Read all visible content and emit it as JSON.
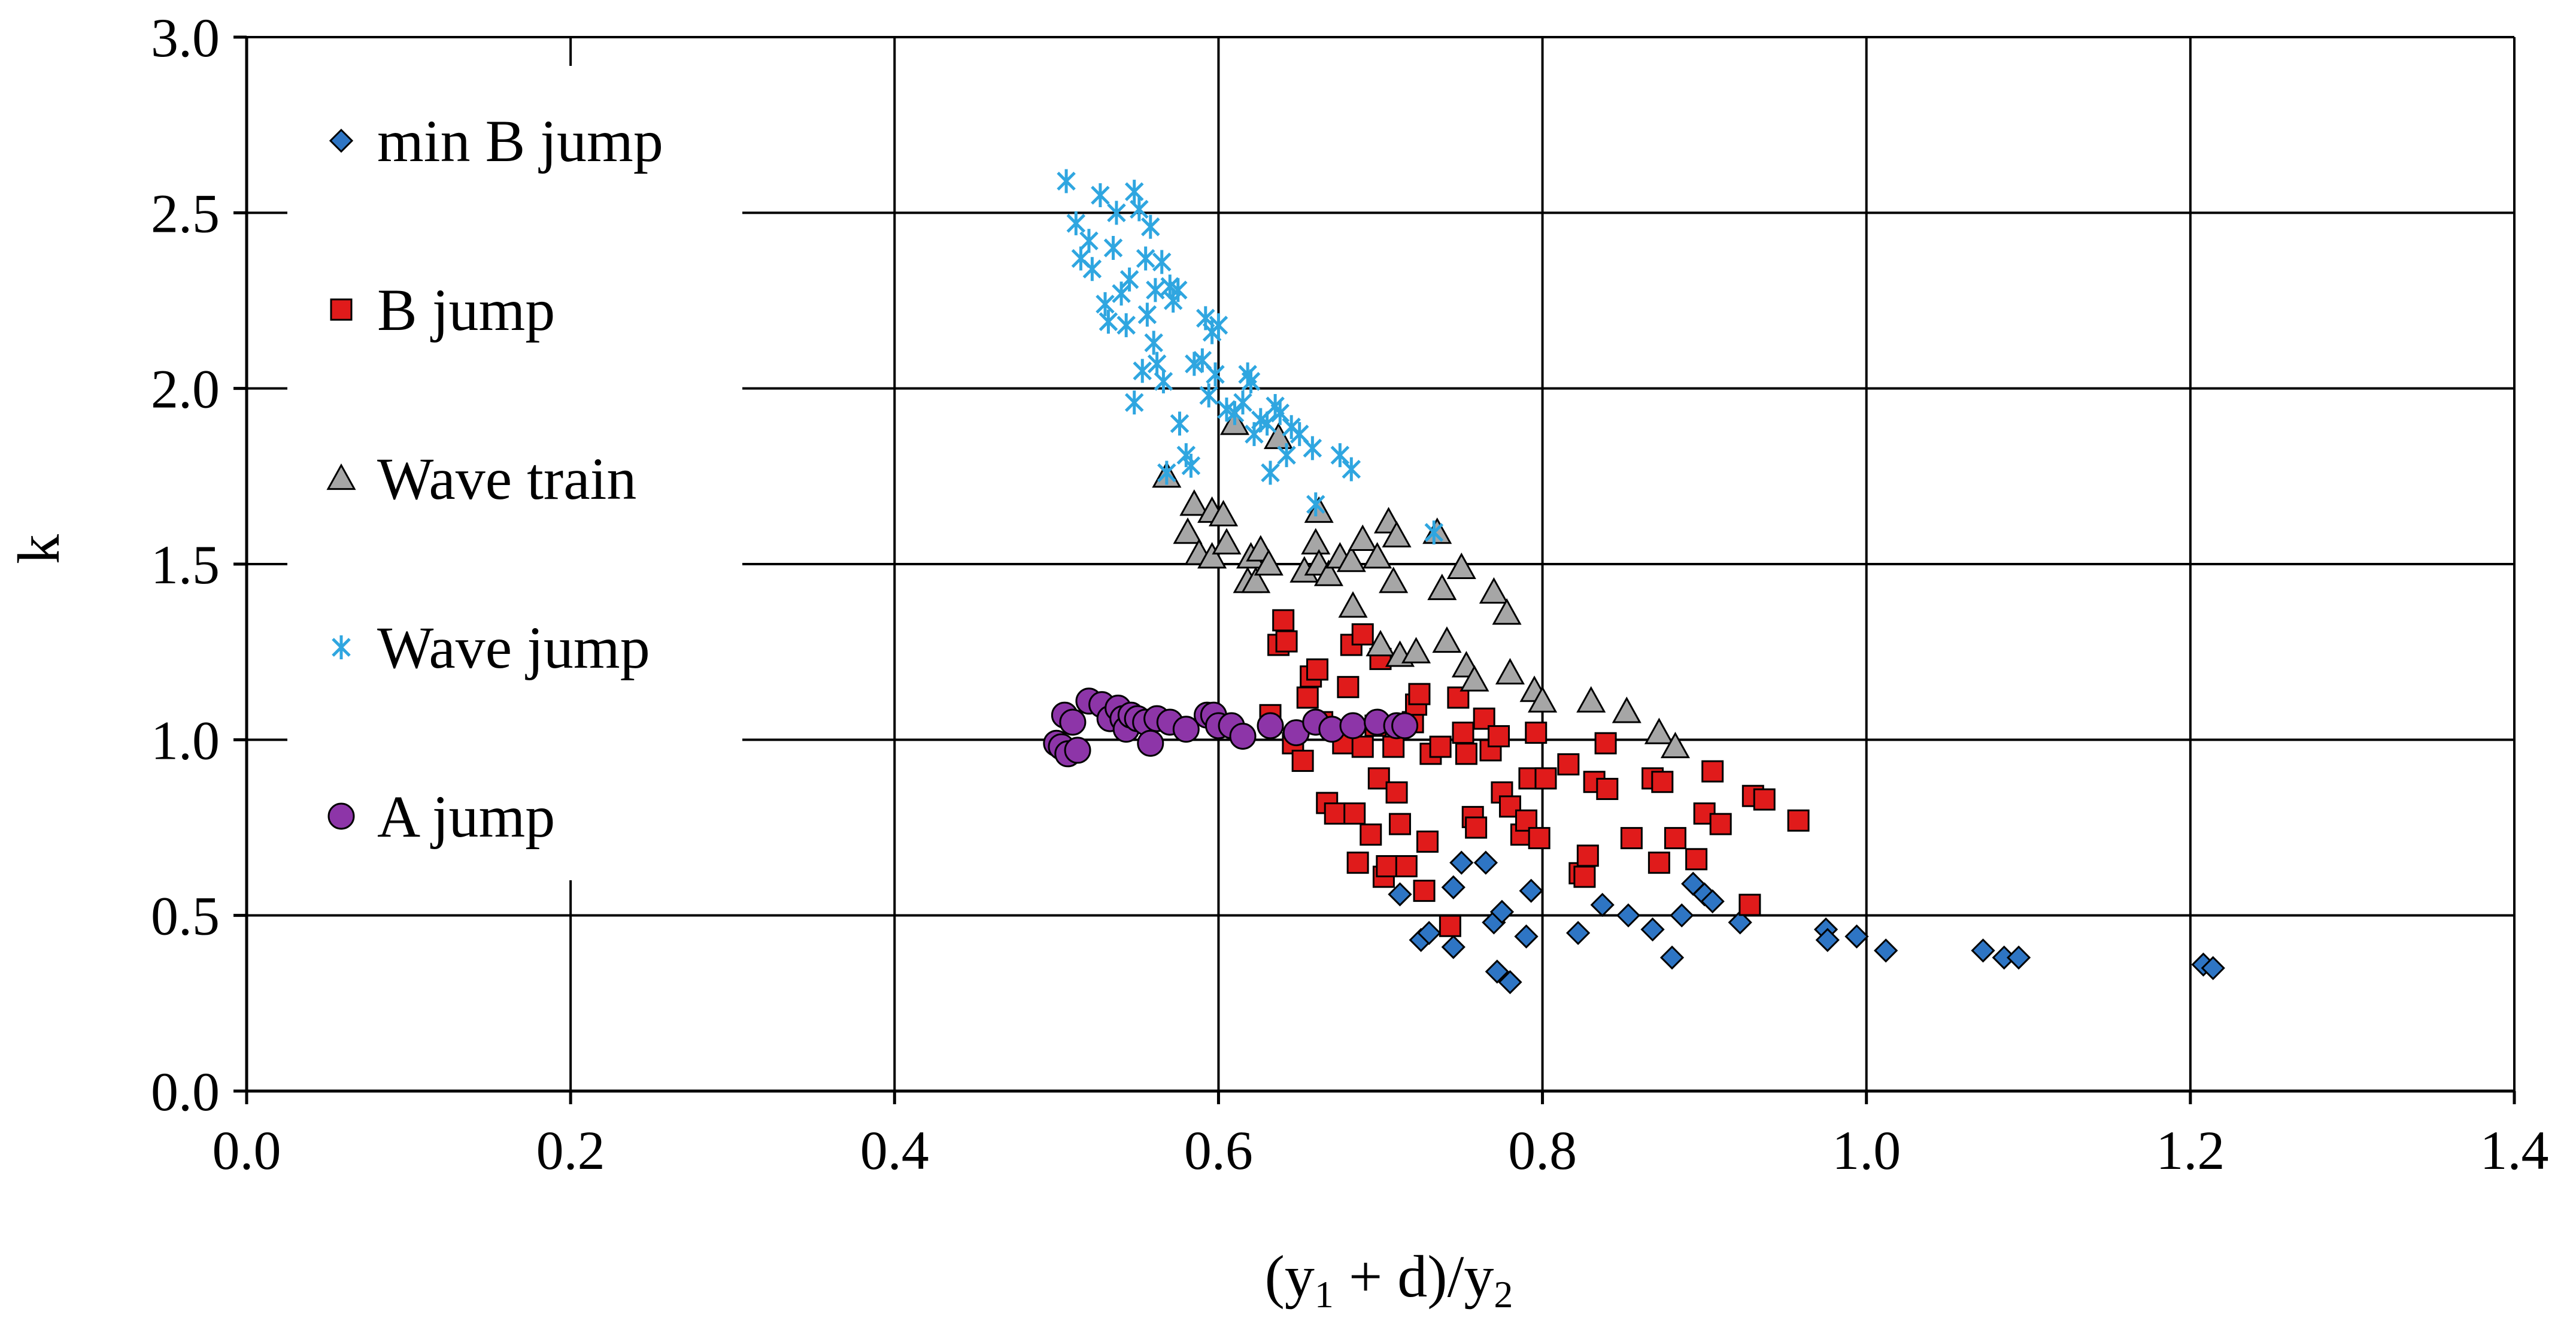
{
  "chart_data": {
    "type": "scatter",
    "title": "",
    "xlabel": "(y1 + d)/y2",
    "xlabel_parts": {
      "open": "(y",
      "sub1": "1",
      "mid": " + d)/y",
      "sub2": "2"
    },
    "ylabel": "k",
    "xlim": [
      0.0,
      1.4
    ],
    "ylim": [
      0.0,
      3.0
    ],
    "xticks": [
      "0.0",
      "0.2",
      "0.4",
      "0.6",
      "0.8",
      "1.0",
      "1.2",
      "1.4"
    ],
    "yticks": [
      "0.0",
      "0.5",
      "1.0",
      "1.5",
      "2.0",
      "2.5",
      "3.0"
    ],
    "grid": true,
    "legend_position": "left inside",
    "series": [
      {
        "name": "min B jump",
        "marker": "diamond",
        "color": "#2E75C4",
        "points": [
          [
            0.712,
            0.56
          ],
          [
            0.725,
            0.43
          ],
          [
            0.73,
            0.45
          ],
          [
            0.745,
            0.41
          ],
          [
            0.745,
            0.58
          ],
          [
            0.75,
            0.65
          ],
          [
            0.765,
            0.65
          ],
          [
            0.77,
            0.48
          ],
          [
            0.775,
            0.51
          ],
          [
            0.772,
            0.34
          ],
          [
            0.78,
            0.31
          ],
          [
            0.79,
            0.44
          ],
          [
            0.793,
            0.57
          ],
          [
            0.822,
            0.45
          ],
          [
            0.837,
            0.53
          ],
          [
            0.853,
            0.5
          ],
          [
            0.868,
            0.46
          ],
          [
            0.88,
            0.38
          ],
          [
            0.886,
            0.5
          ],
          [
            0.893,
            0.59
          ],
          [
            0.9,
            0.56
          ],
          [
            0.905,
            0.54
          ],
          [
            0.922,
            0.48
          ],
          [
            0.975,
            0.46
          ],
          [
            0.976,
            0.43
          ],
          [
            0.994,
            0.44
          ],
          [
            1.012,
            0.4
          ],
          [
            1.072,
            0.4
          ],
          [
            1.085,
            0.38
          ],
          [
            1.094,
            0.38
          ],
          [
            1.208,
            0.36
          ],
          [
            1.214,
            0.35
          ]
        ]
      },
      {
        "name": "B jump",
        "marker": "square",
        "color": "#E01B1B",
        "points": [
          [
            0.632,
            1.07
          ],
          [
            0.637,
            1.27
          ],
          [
            0.64,
            1.34
          ],
          [
            0.642,
            1.28
          ],
          [
            0.646,
            0.99
          ],
          [
            0.652,
            0.94
          ],
          [
            0.655,
            1.12
          ],
          [
            0.657,
            1.18
          ],
          [
            0.661,
            1.2
          ],
          [
            0.664,
            1.05
          ],
          [
            0.667,
            0.82
          ],
          [
            0.672,
            0.79
          ],
          [
            0.677,
            0.99
          ],
          [
            0.68,
            1.15
          ],
          [
            0.682,
            1.27
          ],
          [
            0.684,
            0.79
          ],
          [
            0.686,
            0.65
          ],
          [
            0.689,
            0.98
          ],
          [
            0.689,
            1.3
          ],
          [
            0.694,
            0.73
          ],
          [
            0.697,
            1.04
          ],
          [
            0.699,
            0.89
          ],
          [
            0.7,
            1.23
          ],
          [
            0.702,
            0.61
          ],
          [
            0.704,
            0.64
          ],
          [
            0.708,
            0.98
          ],
          [
            0.71,
            0.85
          ],
          [
            0.712,
            0.76
          ],
          [
            0.716,
            0.64
          ],
          [
            0.72,
            1.05
          ],
          [
            0.722,
            1.1
          ],
          [
            0.724,
            1.13
          ],
          [
            0.727,
            0.57
          ],
          [
            0.729,
            0.71
          ],
          [
            0.731,
            0.96
          ],
          [
            0.737,
            0.98
          ],
          [
            0.743,
            0.47
          ],
          [
            0.748,
            1.12
          ],
          [
            0.751,
            1.02
          ],
          [
            0.753,
            0.96
          ],
          [
            0.757,
            0.78
          ],
          [
            0.759,
            0.75
          ],
          [
            0.764,
            1.06
          ],
          [
            0.768,
            0.97
          ],
          [
            0.773,
            1.01
          ],
          [
            0.775,
            0.85
          ],
          [
            0.78,
            0.81
          ],
          [
            0.787,
            0.73
          ],
          [
            0.79,
            0.77
          ],
          [
            0.792,
            0.89
          ],
          [
            0.796,
            1.02
          ],
          [
            0.798,
            0.72
          ],
          [
            0.802,
            0.89
          ],
          [
            0.816,
            0.93
          ],
          [
            0.823,
            0.62
          ],
          [
            0.826,
            0.61
          ],
          [
            0.828,
            0.67
          ],
          [
            0.832,
            0.88
          ],
          [
            0.839,
            0.99
          ],
          [
            0.84,
            0.86
          ],
          [
            0.855,
            0.72
          ],
          [
            0.868,
            0.89
          ],
          [
            0.872,
            0.65
          ],
          [
            0.874,
            0.88
          ],
          [
            0.882,
            0.72
          ],
          [
            0.895,
            0.66
          ],
          [
            0.9,
            0.79
          ],
          [
            0.905,
            0.91
          ],
          [
            0.91,
            0.76
          ],
          [
            0.928,
            0.53
          ],
          [
            0.93,
            0.84
          ],
          [
            0.937,
            0.83
          ],
          [
            0.958,
            0.77
          ]
        ]
      },
      {
        "name": "Wave train",
        "marker": "triangle",
        "color": "#A6A6A6",
        "points": [
          [
            0.568,
            1.75
          ],
          [
            0.581,
            1.59
          ],
          [
            0.585,
            1.67
          ],
          [
            0.588,
            1.53
          ],
          [
            0.596,
            1.52
          ],
          [
            0.596,
            1.65
          ],
          [
            0.603,
            1.64
          ],
          [
            0.605,
            1.56
          ],
          [
            0.61,
            1.9
          ],
          [
            0.618,
            1.45
          ],
          [
            0.62,
            1.52
          ],
          [
            0.623,
            1.45
          ],
          [
            0.626,
            1.54
          ],
          [
            0.631,
            1.5
          ],
          [
            0.637,
            1.86
          ],
          [
            0.653,
            1.48
          ],
          [
            0.66,
            1.56
          ],
          [
            0.662,
            1.65
          ],
          [
            0.662,
            1.5
          ],
          [
            0.668,
            1.47
          ],
          [
            0.675,
            1.52
          ],
          [
            0.682,
            1.51
          ],
          [
            0.683,
            1.38
          ],
          [
            0.689,
            1.57
          ],
          [
            0.698,
            1.52
          ],
          [
            0.7,
            1.27
          ],
          [
            0.705,
            1.62
          ],
          [
            0.708,
            1.45
          ],
          [
            0.71,
            1.58
          ],
          [
            0.712,
            1.24
          ],
          [
            0.722,
            1.25
          ],
          [
            0.735,
            1.59
          ],
          [
            0.738,
            1.43
          ],
          [
            0.741,
            1.28
          ],
          [
            0.75,
            1.49
          ],
          [
            0.753,
            1.21
          ],
          [
            0.758,
            1.17
          ],
          [
            0.77,
            1.42
          ],
          [
            0.778,
            1.36
          ],
          [
            0.78,
            1.19
          ],
          [
            0.795,
            1.14
          ],
          [
            0.8,
            1.11
          ],
          [
            0.83,
            1.11
          ],
          [
            0.852,
            1.08
          ],
          [
            0.872,
            1.02
          ],
          [
            0.882,
            0.98
          ]
        ]
      },
      {
        "name": "Wave jump",
        "marker": "star",
        "color": "#2FA6E0",
        "points": [
          [
            0.506,
            2.59
          ],
          [
            0.512,
            2.47
          ],
          [
            0.515,
            2.37
          ],
          [
            0.52,
            2.42
          ],
          [
            0.522,
            2.34
          ],
          [
            0.527,
            2.55
          ],
          [
            0.53,
            2.24
          ],
          [
            0.532,
            2.19
          ],
          [
            0.535,
            2.4
          ],
          [
            0.537,
            2.5
          ],
          [
            0.54,
            2.27
          ],
          [
            0.543,
            2.18
          ],
          [
            0.545,
            2.31
          ],
          [
            0.548,
            2.56
          ],
          [
            0.548,
            1.96
          ],
          [
            0.551,
            2.51
          ],
          [
            0.553,
            2.05
          ],
          [
            0.555,
            2.37
          ],
          [
            0.556,
            2.21
          ],
          [
            0.558,
            2.46
          ],
          [
            0.56,
            2.13
          ],
          [
            0.561,
            2.28
          ],
          [
            0.562,
            2.07
          ],
          [
            0.565,
            2.36
          ],
          [
            0.566,
            2.02
          ],
          [
            0.568,
            1.76
          ],
          [
            0.57,
            2.29
          ],
          [
            0.572,
            2.25
          ],
          [
            0.575,
            2.28
          ],
          [
            0.576,
            1.9
          ],
          [
            0.58,
            1.81
          ],
          [
            0.583,
            1.78
          ],
          [
            0.585,
            2.07
          ],
          [
            0.59,
            2.08
          ],
          [
            0.592,
            2.2
          ],
          [
            0.594,
            1.98
          ],
          [
            0.596,
            2.16
          ],
          [
            0.598,
            2.04
          ],
          [
            0.6,
            2.18
          ],
          [
            0.605,
            1.94
          ],
          [
            0.61,
            1.93
          ],
          [
            0.615,
            1.96
          ],
          [
            0.618,
            2.04
          ],
          [
            0.62,
            2.02
          ],
          [
            0.622,
            1.87
          ],
          [
            0.626,
            1.91
          ],
          [
            0.63,
            1.9
          ],
          [
            0.632,
            1.76
          ],
          [
            0.635,
            1.95
          ],
          [
            0.638,
            1.93
          ],
          [
            0.642,
            1.81
          ],
          [
            0.645,
            1.89
          ],
          [
            0.65,
            1.87
          ],
          [
            0.658,
            1.83
          ],
          [
            0.66,
            1.67
          ],
          [
            0.675,
            1.81
          ],
          [
            0.682,
            1.77
          ],
          [
            0.733,
            1.59
          ]
        ]
      },
      {
        "name": "A jump",
        "marker": "circle",
        "color": "#8D35A8",
        "points": [
          [
            0.5,
            0.99
          ],
          [
            0.503,
            0.98
          ],
          [
            0.505,
            1.07
          ],
          [
            0.507,
            0.96
          ],
          [
            0.51,
            1.05
          ],
          [
            0.513,
            0.97
          ],
          [
            0.52,
            1.11
          ],
          [
            0.528,
            1.1
          ],
          [
            0.533,
            1.06
          ],
          [
            0.538,
            1.09
          ],
          [
            0.541,
            1.06
          ],
          [
            0.543,
            1.03
          ],
          [
            0.546,
            1.07
          ],
          [
            0.55,
            1.06
          ],
          [
            0.555,
            1.05
          ],
          [
            0.558,
            0.99
          ],
          [
            0.562,
            1.06
          ],
          [
            0.57,
            1.05
          ],
          [
            0.58,
            1.03
          ],
          [
            0.593,
            1.07
          ],
          [
            0.597,
            1.07
          ],
          [
            0.6,
            1.04
          ],
          [
            0.608,
            1.04
          ],
          [
            0.615,
            1.01
          ],
          [
            0.632,
            1.04
          ],
          [
            0.648,
            1.02
          ],
          [
            0.66,
            1.05
          ],
          [
            0.67,
            1.03
          ],
          [
            0.683,
            1.04
          ],
          [
            0.698,
            1.05
          ],
          [
            0.71,
            1.04
          ],
          [
            0.715,
            1.04
          ]
        ]
      }
    ]
  }
}
